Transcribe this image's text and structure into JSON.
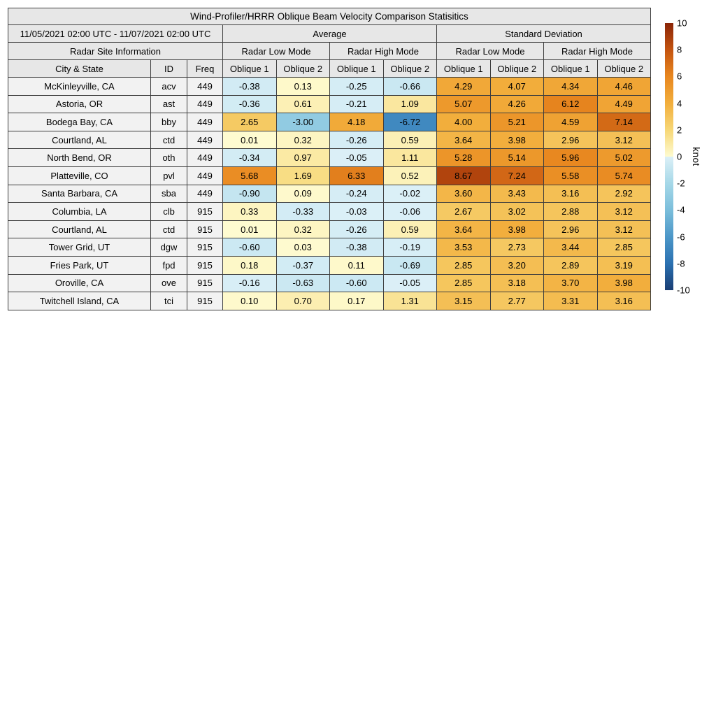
{
  "chart_data": {
    "type": "heatmap",
    "title": "Wind-Profiler/HRRR Oblique Beam Velocity Comparison Statisitics",
    "date_range": "11/05/2021 02:00 UTC - 11/07/2021 02:00 UTC",
    "group_headers": {
      "average": "Average",
      "std_dev": "Standard Deviation"
    },
    "site_info_header": "Radar Site Information",
    "mode_headers": [
      "Radar Low Mode",
      "Radar High Mode",
      "Radar Low Mode",
      "Radar High Mode"
    ],
    "column_headers": {
      "city": "City & State",
      "id": "ID",
      "freq": "Freq",
      "oblique": [
        "Oblique 1",
        "Oblique 2",
        "Oblique 1",
        "Oblique 2",
        "Oblique 1",
        "Oblique 2",
        "Oblique 1",
        "Oblique 2"
      ]
    },
    "rows": [
      {
        "city": "McKinleyville, CA",
        "id": "acv",
        "freq": "449",
        "values": [
          "-0.38",
          "0.13",
          "-0.25",
          "-0.66",
          "4.29",
          "4.07",
          "4.34",
          "4.46"
        ]
      },
      {
        "city": "Astoria, OR",
        "id": "ast",
        "freq": "449",
        "values": [
          "-0.36",
          "0.61",
          "-0.21",
          "1.09",
          "5.07",
          "4.26",
          "6.12",
          "4.49"
        ]
      },
      {
        "city": "Bodega Bay, CA",
        "id": "bby",
        "freq": "449",
        "values": [
          "2.65",
          "-3.00",
          "4.18",
          "-6.72",
          "4.00",
          "5.21",
          "4.59",
          "7.14"
        ]
      },
      {
        "city": "Courtland, AL",
        "id": "ctd",
        "freq": "449",
        "values": [
          "0.01",
          "0.32",
          "-0.26",
          "0.59",
          "3.64",
          "3.98",
          "2.96",
          "3.12"
        ]
      },
      {
        "city": "North Bend, OR",
        "id": "oth",
        "freq": "449",
        "values": [
          "-0.34",
          "0.97",
          "-0.05",
          "1.11",
          "5.28",
          "5.14",
          "5.96",
          "5.02"
        ]
      },
      {
        "city": "Platteville, CO",
        "id": "pvl",
        "freq": "449",
        "values": [
          "5.68",
          "1.69",
          "6.33",
          "0.52",
          "8.67",
          "7.24",
          "5.58",
          "5.74"
        ]
      },
      {
        "city": "Santa Barbara, CA",
        "id": "sba",
        "freq": "449",
        "values": [
          "-0.90",
          "0.09",
          "-0.24",
          "-0.02",
          "3.60",
          "3.43",
          "3.16",
          "2.92"
        ]
      },
      {
        "city": "Columbia, LA",
        "id": "clb",
        "freq": "915",
        "values": [
          "0.33",
          "-0.33",
          "-0.03",
          "-0.06",
          "2.67",
          "3.02",
          "2.88",
          "3.12"
        ]
      },
      {
        "city": "Courtland, AL",
        "id": "ctd",
        "freq": "915",
        "values": [
          "0.01",
          "0.32",
          "-0.26",
          "0.59",
          "3.64",
          "3.98",
          "2.96",
          "3.12"
        ]
      },
      {
        "city": "Tower Grid, UT",
        "id": "dgw",
        "freq": "915",
        "values": [
          "-0.60",
          "0.03",
          "-0.38",
          "-0.19",
          "3.53",
          "2.73",
          "3.44",
          "2.85"
        ]
      },
      {
        "city": "Fries Park, UT",
        "id": "fpd",
        "freq": "915",
        "values": [
          "0.18",
          "-0.37",
          "0.11",
          "-0.69",
          "2.85",
          "3.20",
          "2.89",
          "3.19"
        ]
      },
      {
        "city": "Oroville, CA",
        "id": "ove",
        "freq": "915",
        "values": [
          "-0.16",
          "-0.63",
          "-0.60",
          "-0.05",
          "2.85",
          "3.18",
          "3.70",
          "3.98"
        ]
      },
      {
        "city": "Twitchell Island, CA",
        "id": "tci",
        "freq": "915",
        "values": [
          "0.10",
          "0.70",
          "0.17",
          "1.31",
          "3.15",
          "2.77",
          "3.31",
          "3.16"
        ]
      }
    ],
    "colorbar": {
      "label": "knot",
      "vmin": -10,
      "vmax": 10,
      "ticks": [
        "10",
        "8",
        "6",
        "4",
        "2",
        "0",
        "-2",
        "-4",
        "-6",
        "-8",
        "-10"
      ],
      "stops_negative": [
        [
          -10,
          "#1A3E74"
        ],
        [
          -8,
          "#2B71B1"
        ],
        [
          -6,
          "#4C97C8"
        ],
        [
          -4,
          "#7BBEDB"
        ],
        [
          -2,
          "#A6D8E8"
        ],
        [
          0,
          "#DCF0F7"
        ]
      ],
      "stops_positive": [
        [
          0,
          "#FEFBD0"
        ],
        [
          2,
          "#F7D776"
        ],
        [
          4,
          "#F2AE3C"
        ],
        [
          6,
          "#E8871F"
        ],
        [
          8,
          "#C45410"
        ],
        [
          10,
          "#8A2508"
        ]
      ]
    }
  }
}
